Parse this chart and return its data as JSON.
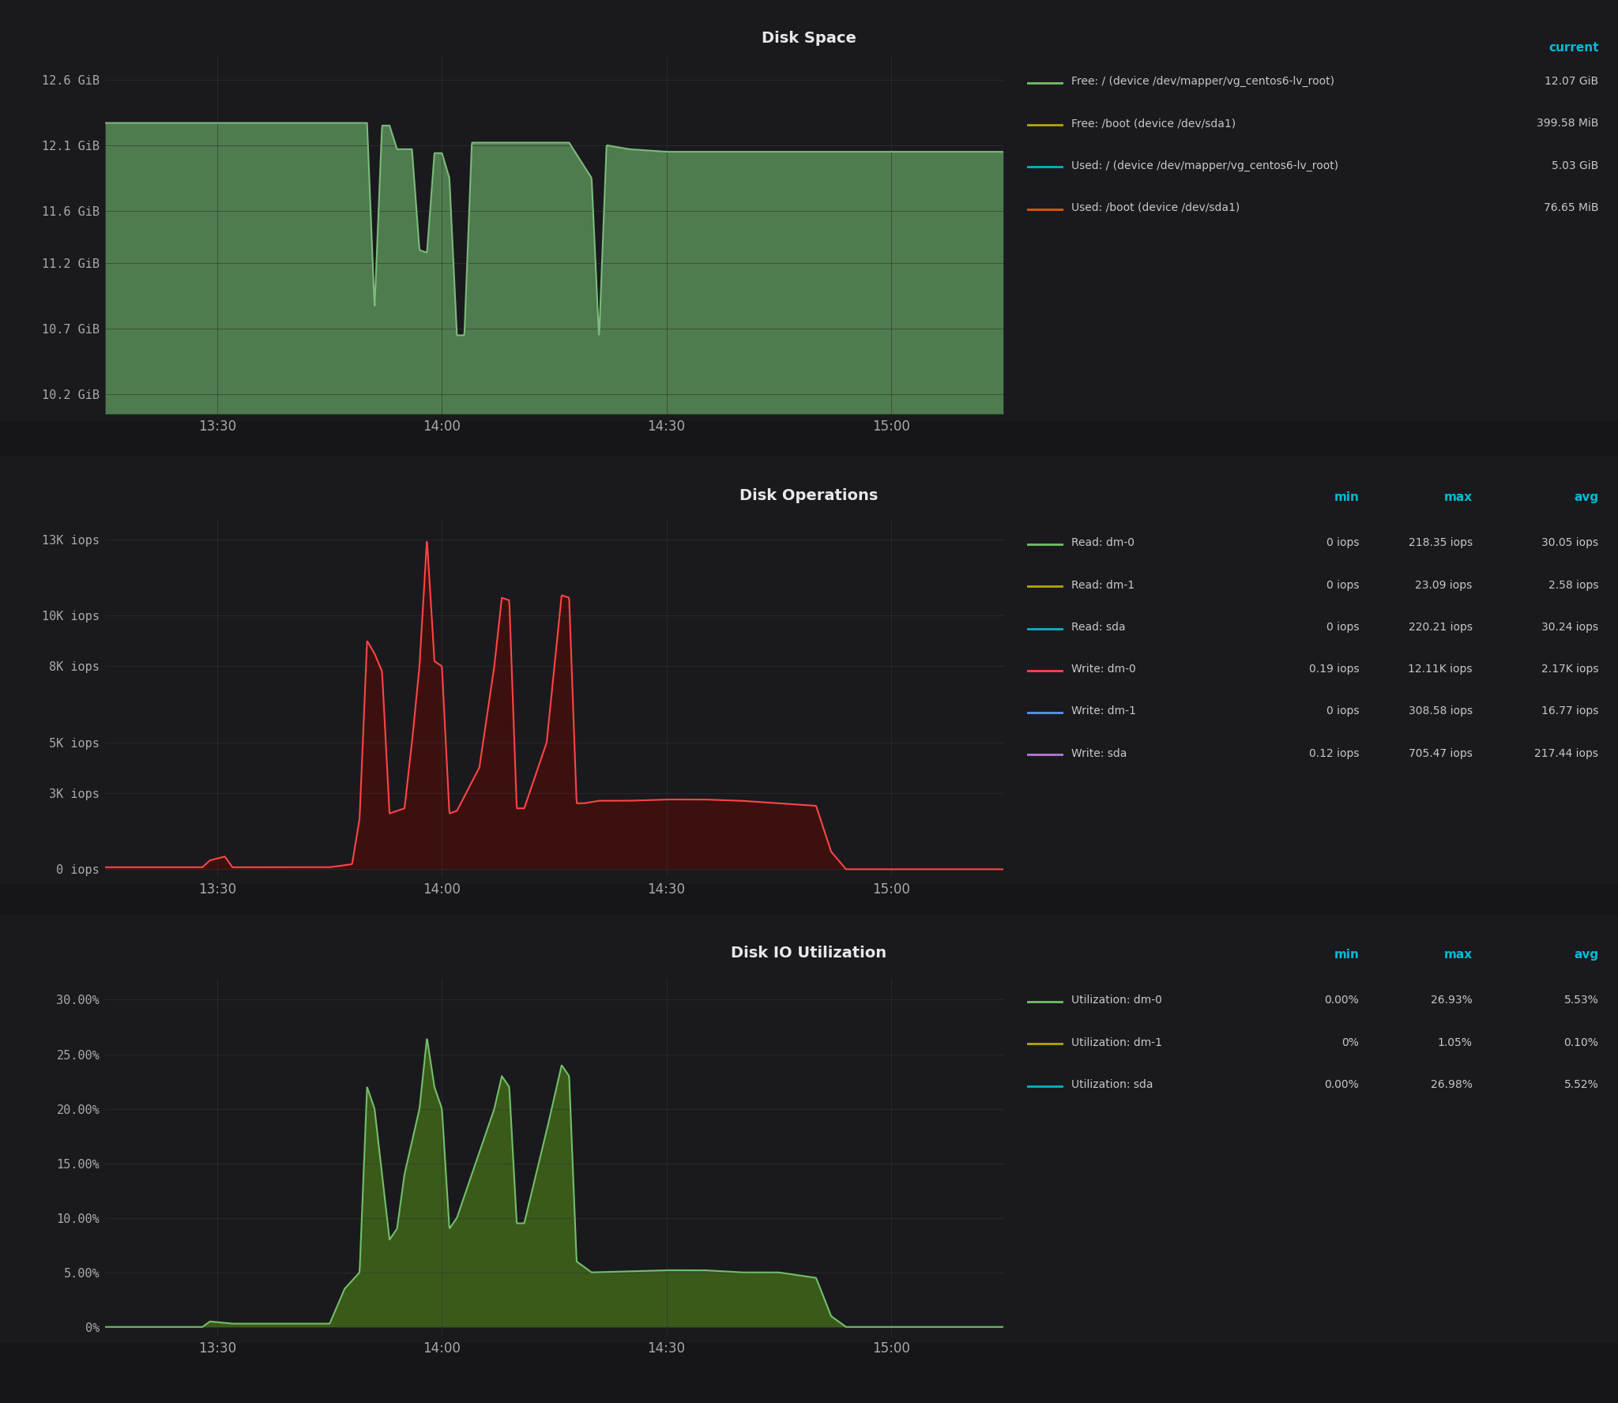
{
  "bg_color": "#161619",
  "panel_bg": "#1a1a1e",
  "text_color": "#cccccc",
  "title_color": "#e0e0e0",
  "cyan_color": "#00bcd4",
  "grid_color": "#2a2a2a",
  "disk_space": {
    "title": "Disk Space",
    "yticks": [
      "10.2 GiB",
      "10.7 GiB",
      "11.2 GiB",
      "11.6 GiB",
      "12.1 GiB",
      "12.6 GiB"
    ],
    "ytick_vals": [
      10.2,
      10.7,
      11.2,
      11.6,
      12.1,
      12.6
    ],
    "ylim": [
      10.05,
      12.78
    ],
    "xticks": [
      "13:30",
      "14:00",
      "14:30",
      "15:00"
    ],
    "fill_color": "#4e7c4e",
    "line_color": "#7dba7d",
    "legend": {
      "current_label": "current",
      "entries": [
        {
          "label": "Free: / (device /dev/mapper/vg_centos6-lv_root)",
          "color": "#73bf69",
          "value": "12.07 GiB"
        },
        {
          "label": "Free: /boot (device /dev/sda1)",
          "color": "#b5a800",
          "value": "399.58 MiB"
        },
        {
          "label": "Used: / (device /dev/mapper/vg_centos6-lv_root)",
          "color": "#00b4c2",
          "value": "5.03 GiB"
        },
        {
          "label": "Used: /boot (device /dev/sda1)",
          "color": "#e05800",
          "value": "76.65 MiB"
        }
      ]
    }
  },
  "disk_ops": {
    "title": "Disk Operations",
    "yticks": [
      "0 iops",
      "3K iops",
      "5K iops",
      "8K iops",
      "10K iops",
      "13K iops"
    ],
    "ytick_vals": [
      0,
      3000,
      5000,
      8000,
      10000,
      13000
    ],
    "ylim": [
      -300,
      13800
    ],
    "xticks": [
      "13:30",
      "14:00",
      "14:30",
      "15:00"
    ],
    "fill_color": "#3d1010",
    "line_color": "#ff4444",
    "legend": {
      "headers": [
        "min",
        "max",
        "avg"
      ],
      "entries": [
        {
          "label": "Read: dm-0",
          "color": "#73bf69",
          "min": "0 iops",
          "max": "218.35 iops",
          "avg": "30.05 iops"
        },
        {
          "label": "Read: dm-1",
          "color": "#b5a800",
          "min": "0 iops",
          "max": "23.09 iops",
          "avg": "2.58 iops"
        },
        {
          "label": "Read: sda",
          "color": "#00b4c2",
          "min": "0 iops",
          "max": "220.21 iops",
          "avg": "30.24 iops"
        },
        {
          "label": "Write: dm-0",
          "color": "#ff4444",
          "min": "0.19 iops",
          "max": "12.11K iops",
          "avg": "2.17K iops"
        },
        {
          "label": "Write: dm-1",
          "color": "#5794f2",
          "min": "0 iops",
          "max": "308.58 iops",
          "avg": "16.77 iops"
        },
        {
          "label": "Write: sda",
          "color": "#b877d9",
          "min": "0.12 iops",
          "max": "705.47 iops",
          "avg": "217.44 iops"
        }
      ]
    }
  },
  "disk_io": {
    "title": "Disk IO Utilization",
    "yticks": [
      "0%",
      "5.00%",
      "10.00%",
      "15.00%",
      "20.00%",
      "25.00%",
      "30.00%"
    ],
    "ytick_vals": [
      0,
      5,
      10,
      15,
      20,
      25,
      30
    ],
    "ylim": [
      -0.8,
      32
    ],
    "xticks": [
      "13:30",
      "14:00",
      "14:30",
      "15:00"
    ],
    "fill_color": "#3a5a1a",
    "line_color": "#73bf69",
    "legend": {
      "headers": [
        "min",
        "max",
        "avg"
      ],
      "entries": [
        {
          "label": "Utilization: dm-0",
          "color": "#73bf69",
          "min": "0.00%",
          "max": "26.93%",
          "avg": "5.53%"
        },
        {
          "label": "Utilization: dm-1",
          "color": "#b5a800",
          "min": "0%",
          "max": "1.05%",
          "avg": "0.10%"
        },
        {
          "label": "Utilization: sda",
          "color": "#00b4c2",
          "min": "0.00%",
          "max": "26.98%",
          "avg": "5.52%"
        }
      ]
    }
  }
}
